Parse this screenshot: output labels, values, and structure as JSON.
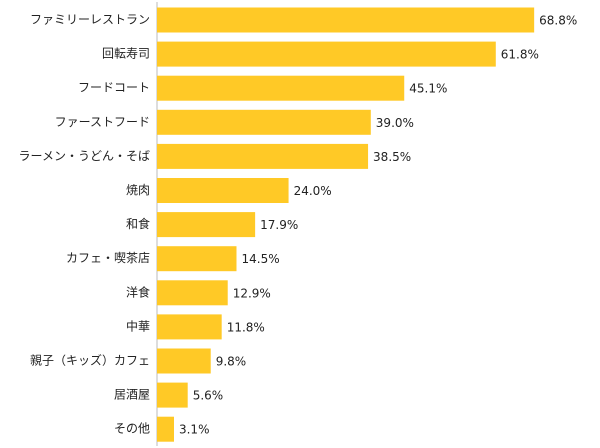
{
  "chart_data": {
    "type": "bar",
    "orientation": "horizontal",
    "categories": [
      "ファミリーレストラン",
      "回転寿司",
      "フードコート",
      "ファーストフード",
      "ラーメン・うどん・そば",
      "焼肉",
      "和食",
      "カフェ・喫茶店",
      "洋食",
      "中華",
      "親子（キッズ）カフェ",
      "居酒屋",
      "その他"
    ],
    "values": [
      68.8,
      61.8,
      45.1,
      39.0,
      38.5,
      24.0,
      17.9,
      14.5,
      12.9,
      11.8,
      9.8,
      5.6,
      3.1
    ],
    "value_labels": [
      "68.8%",
      "61.8%",
      "45.1%",
      "39.0%",
      "38.5%",
      "24.0%",
      "17.9%",
      "14.5%",
      "12.9%",
      "11.8%",
      "9.8%",
      "5.6%",
      "3.1%"
    ],
    "unit": "%",
    "title": "",
    "xlabel": "",
    "ylabel": "",
    "xlim": [
      0,
      70
    ],
    "grid": false,
    "legend": "none",
    "bar_color": "#FFC926"
  }
}
